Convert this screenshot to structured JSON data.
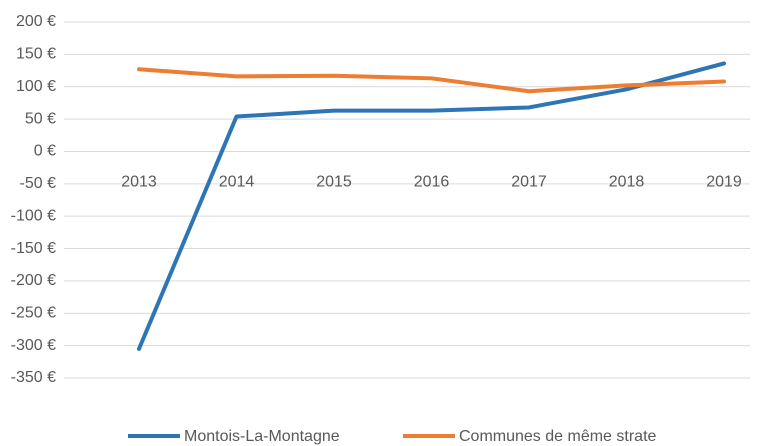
{
  "chart_data": {
    "type": "line",
    "categories": [
      "2013",
      "2014",
      "2015",
      "2016",
      "2017",
      "2018",
      "2019"
    ],
    "series": [
      {
        "name": "Montois-La-Montagne",
        "color": "#2e75b6",
        "values": [
          -305,
          54,
          63,
          63,
          68,
          96,
          136
        ]
      },
      {
        "name": "Communes de même strate",
        "color": "#ed7d31",
        "values": [
          127,
          116,
          117,
          113,
          93,
          102,
          108
        ]
      }
    ],
    "ylim": [
      -350,
      200
    ],
    "yticks": [
      {
        "value": 200,
        "label": "200 €"
      },
      {
        "value": 150,
        "label": "150 €"
      },
      {
        "value": 100,
        "label": "100 €"
      },
      {
        "value": 50,
        "label": "50 €"
      },
      {
        "value": 0,
        "label": "0 €"
      },
      {
        "value": -50,
        "label": "-50 €"
      },
      {
        "value": -100,
        "label": "-100 €"
      },
      {
        "value": -150,
        "label": "-150 €"
      },
      {
        "value": -200,
        "label": "-200 €"
      },
      {
        "value": -250,
        "label": "-250 €"
      },
      {
        "value": -300,
        "label": "-300 €"
      },
      {
        "value": -350,
        "label": "-350 €"
      }
    ],
    "grid": true,
    "legend": "bottom"
  }
}
